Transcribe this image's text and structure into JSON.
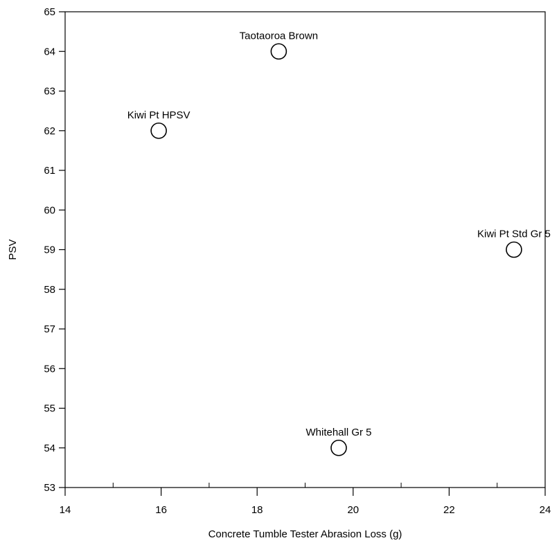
{
  "chart_data": {
    "type": "scatter",
    "title": "",
    "xlabel": "Concrete Tumble Tester Abrasion Loss (g)",
    "ylabel": "PSV",
    "xlim": [
      14,
      24
    ],
    "ylim": [
      53,
      65
    ],
    "x_ticks": [
      14,
      16,
      18,
      20,
      22,
      24
    ],
    "x_minor_ticks": [
      15,
      17,
      19,
      21,
      23
    ],
    "y_ticks": [
      53,
      54,
      55,
      56,
      57,
      58,
      59,
      60,
      61,
      62,
      63,
      64,
      65
    ],
    "grid": false,
    "marker": "open-circle",
    "points": [
      {
        "label": "Taotaoroa Brown",
        "x": 18.45,
        "y": 64.0
      },
      {
        "label": "Kiwi Pt HPSV",
        "x": 15.95,
        "y": 62.0
      },
      {
        "label": "Kiwi Pt Std Gr 5",
        "x": 23.35,
        "y": 59.0
      },
      {
        "label": "Whitehall Gr 5",
        "x": 19.7,
        "y": 54.0
      }
    ]
  }
}
